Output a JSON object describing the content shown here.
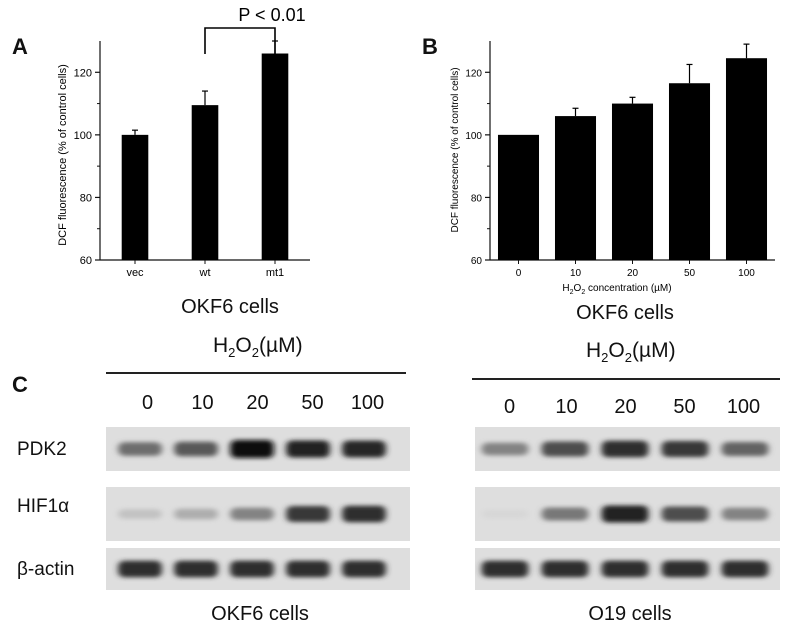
{
  "panels": {
    "a": "A",
    "b": "B",
    "c": "C"
  },
  "chart_data": [
    {
      "type": "bar",
      "categories": [
        "vec",
        "wt",
        "mt1"
      ],
      "values": [
        100,
        109.5,
        126
      ],
      "errors": [
        1.5,
        4.5,
        4
      ],
      "ylabel": "DCF fluorescence (% of control cells)",
      "xlabel": "",
      "ylim": [
        60,
        130
      ],
      "yticks": [
        60,
        80,
        100,
        120
      ],
      "annotation": "P < 0.01",
      "caption": "OKF6 cells"
    },
    {
      "type": "bar",
      "categories": [
        "0",
        "10",
        "20",
        "50",
        "100"
      ],
      "values": [
        100,
        106,
        110,
        116.5,
        124.5
      ],
      "errors": [
        0,
        2.5,
        2,
        6,
        4.5
      ],
      "ylabel": "DCF fluorescence (% of control cells)",
      "xlabel_main": "H",
      "xlabel_sub": "2",
      "xlabel_mid": "O",
      "xlabel_sub2": "2",
      "xlabel_end": " concentration (µM)",
      "ylim": [
        60,
        130
      ],
      "yticks": [
        60,
        80,
        100,
        120
      ],
      "caption": "OKF6 cells"
    }
  ],
  "blots": {
    "header_main": "H",
    "header_sub": "2",
    "header_mid": "O",
    "header_sub2": "2",
    "header_end": "(µM)",
    "lanes": [
      "0",
      "10",
      "20",
      "50",
      "100"
    ],
    "rows": [
      "PDK2",
      "HIF1α",
      "β-actin"
    ],
    "left_caption": "OKF6 cells",
    "right_caption": "O19 cells",
    "left_intensity": {
      "PDK2": [
        0.55,
        0.65,
        1.0,
        0.9,
        0.88
      ],
      "HIF1α": [
        0.15,
        0.25,
        0.45,
        0.8,
        0.85
      ],
      "β-actin": [
        0.85,
        0.85,
        0.85,
        0.85,
        0.85
      ]
    },
    "right_intensity": {
      "PDK2": [
        0.45,
        0.7,
        0.85,
        0.8,
        0.6
      ],
      "HIF1α": [
        0.05,
        0.5,
        0.9,
        0.7,
        0.45
      ],
      "β-actin": [
        0.85,
        0.85,
        0.85,
        0.85,
        0.85
      ]
    }
  }
}
